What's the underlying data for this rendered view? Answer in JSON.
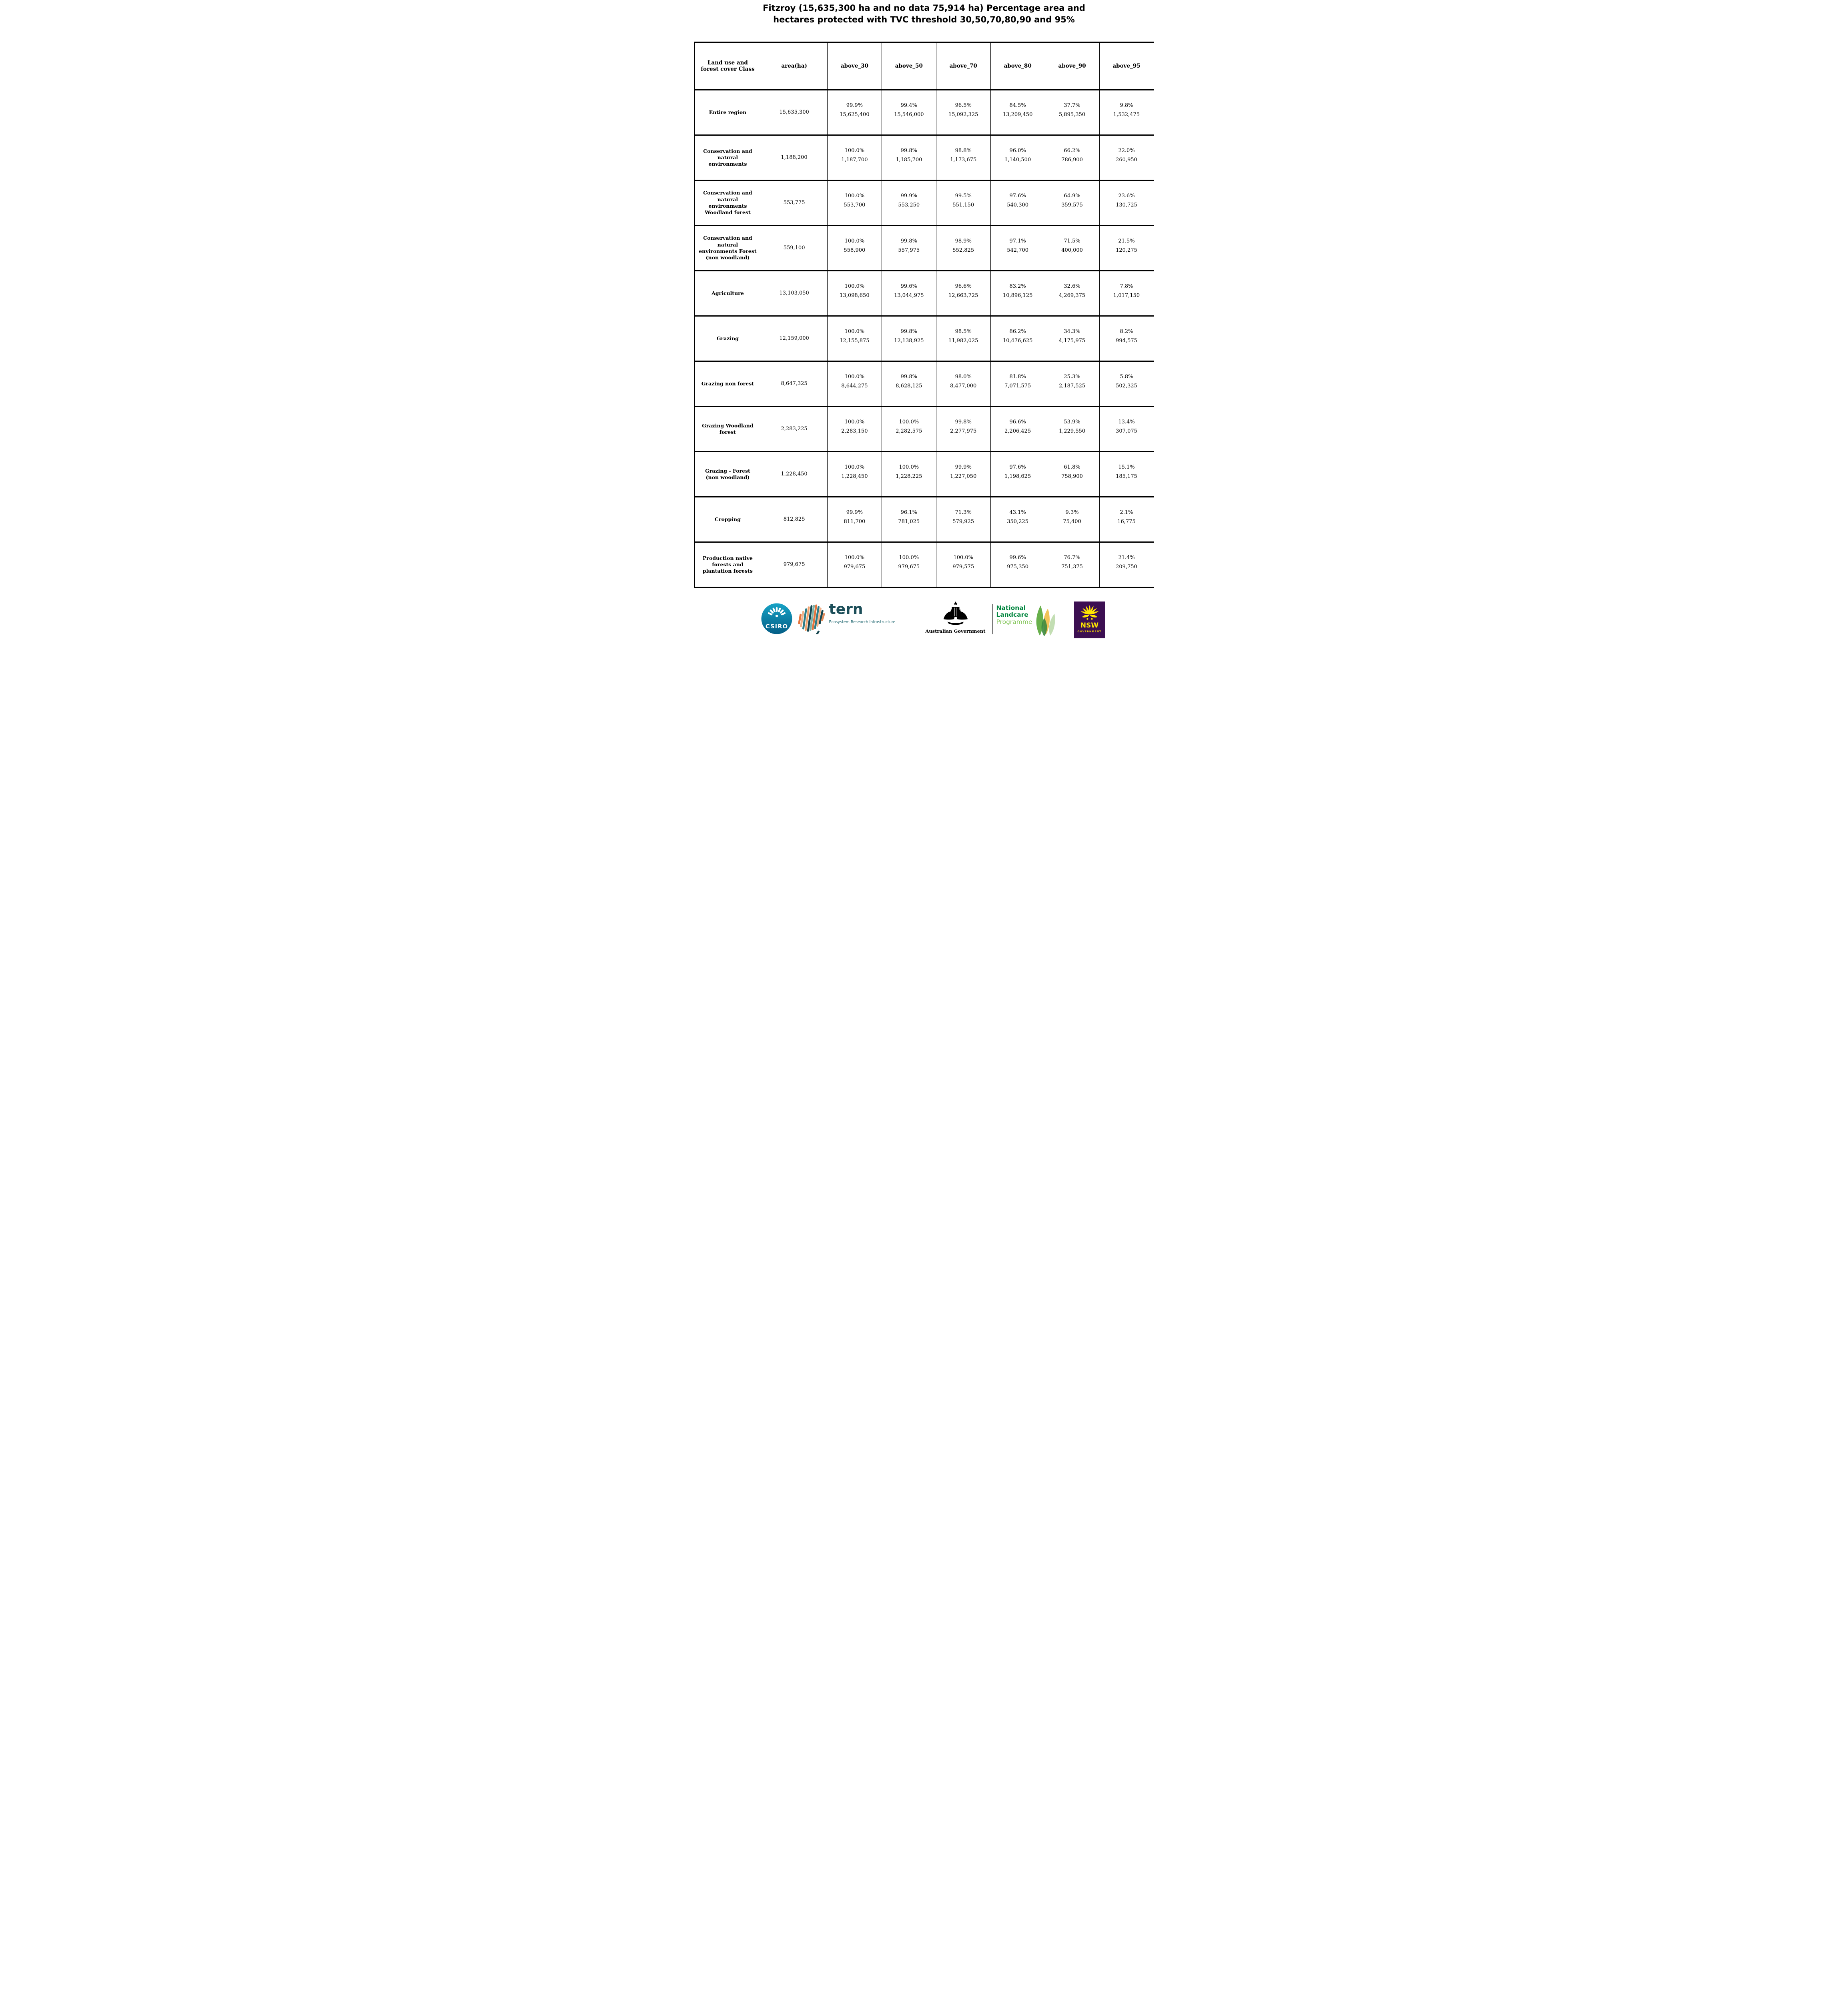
{
  "title": {
    "line1": "Fitzroy (15,635,300 ha and no data 75,914 ha) Percentage area and",
    "line2": "hectares protected with TVC threshold 30,50,70,80,90 and 95%"
  },
  "chart_data": {
    "type": "table",
    "title": "Fitzroy (15,635,300 ha and no data 75,914 ha) Percentage area and hectares protected with TVC threshold 30,50,70,80,90 and 95%",
    "region_area_ha": "15,635,300",
    "no_data_ha": "75,914",
    "columns": [
      "Land use and forest cover Class",
      "area(ha)",
      "above_30",
      "above_50",
      "above_70",
      "above_80",
      "above_90",
      "above_95"
    ],
    "rows": [
      {
        "label": "Entire region",
        "area": "15,635,300",
        "cells": [
          [
            "99.9%",
            "15,625,400"
          ],
          [
            "99.4%",
            "15,546,000"
          ],
          [
            "96.5%",
            "15,092,325"
          ],
          [
            "84.5%",
            "13,209,450"
          ],
          [
            "37.7%",
            "5,895,350"
          ],
          [
            "9.8%",
            "1,532,475"
          ]
        ]
      },
      {
        "label": "Conservation and natural environments",
        "area": "1,188,200",
        "cells": [
          [
            "100.0%",
            "1,187,700"
          ],
          [
            "99.8%",
            "1,185,700"
          ],
          [
            "98.8%",
            "1,173,675"
          ],
          [
            "96.0%",
            "1,140,500"
          ],
          [
            "66.2%",
            "786,900"
          ],
          [
            "22.0%",
            "260,950"
          ]
        ]
      },
      {
        "label": "Conservation and natural environments Woodland forest",
        "area": "553,775",
        "cells": [
          [
            "100.0%",
            "553,700"
          ],
          [
            "99.9%",
            "553,250"
          ],
          [
            "99.5%",
            "551,150"
          ],
          [
            "97.6%",
            "540,300"
          ],
          [
            "64.9%",
            "359,575"
          ],
          [
            "23.6%",
            "130,725"
          ]
        ]
      },
      {
        "label": "Conservation and natural environments Forest (non woodland)",
        "area": "559,100",
        "cells": [
          [
            "100.0%",
            "558,900"
          ],
          [
            "99.8%",
            "557,975"
          ],
          [
            "98.9%",
            "552,825"
          ],
          [
            "97.1%",
            "542,700"
          ],
          [
            "71.5%",
            "400,000"
          ],
          [
            "21.5%",
            "120,275"
          ]
        ]
      },
      {
        "label": "Agriculture",
        "area": "13,103,050",
        "cells": [
          [
            "100.0%",
            "13,098,650"
          ],
          [
            "99.6%",
            "13,044,975"
          ],
          [
            "96.6%",
            "12,663,725"
          ],
          [
            "83.2%",
            "10,896,125"
          ],
          [
            "32.6%",
            "4,269,375"
          ],
          [
            "7.8%",
            "1,017,150"
          ]
        ]
      },
      {
        "label": "Grazing",
        "area": "12,159,000",
        "cells": [
          [
            "100.0%",
            "12,155,875"
          ],
          [
            "99.8%",
            "12,138,925"
          ],
          [
            "98.5%",
            "11,982,025"
          ],
          [
            "86.2%",
            "10,476,625"
          ],
          [
            "34.3%",
            "4,175,975"
          ],
          [
            "8.2%",
            "994,575"
          ]
        ]
      },
      {
        "label": "Grazing non forest",
        "area": "8,647,325",
        "cells": [
          [
            "100.0%",
            "8,644,275"
          ],
          [
            "99.8%",
            "8,628,125"
          ],
          [
            "98.0%",
            "8,477,000"
          ],
          [
            "81.8%",
            "7,071,575"
          ],
          [
            "25.3%",
            "2,187,525"
          ],
          [
            "5.8%",
            "502,325"
          ]
        ]
      },
      {
        "label": "Grazing Woodland forest",
        "area": "2,283,225",
        "cells": [
          [
            "100.0%",
            "2,283,150"
          ],
          [
            "100.0%",
            "2,282,575"
          ],
          [
            "99.8%",
            "2,277,975"
          ],
          [
            "96.6%",
            "2,206,425"
          ],
          [
            "53.9%",
            "1,229,550"
          ],
          [
            "13.4%",
            "307,075"
          ]
        ]
      },
      {
        "label": "Grazing - Forest (non woodland)",
        "area": "1,228,450",
        "cells": [
          [
            "100.0%",
            "1,228,450"
          ],
          [
            "100.0%",
            "1,228,225"
          ],
          [
            "99.9%",
            "1,227,050"
          ],
          [
            "97.6%",
            "1,198,625"
          ],
          [
            "61.8%",
            "758,900"
          ],
          [
            "15.1%",
            "185,175"
          ]
        ]
      },
      {
        "label": "Cropping",
        "area": "812,825",
        "cells": [
          [
            "99.9%",
            "811,700"
          ],
          [
            "96.1%",
            "781,025"
          ],
          [
            "71.3%",
            "579,925"
          ],
          [
            "43.1%",
            "350,225"
          ],
          [
            "9.3%",
            "75,400"
          ],
          [
            "2.1%",
            "16,775"
          ]
        ]
      },
      {
        "label": "Production native forests and plantation forests",
        "area": "979,675",
        "cells": [
          [
            "100.0%",
            "979,675"
          ],
          [
            "100.0%",
            "979,675"
          ],
          [
            "100.0%",
            "979,575"
          ],
          [
            "99.6%",
            "975,350"
          ],
          [
            "76.7%",
            "751,375"
          ],
          [
            "21.4%",
            "209,750"
          ]
        ]
      }
    ],
    "layout_hints": {
      "grid": "all-borders",
      "row_separator": "thick",
      "header_row": true
    }
  },
  "footer": {
    "csiro": {
      "label": "CSIRO"
    },
    "tern": {
      "name": "tern",
      "tagline": "Ecosystem Research Infrastructure"
    },
    "ausgov": {
      "label": "Australian Government"
    },
    "landcare": {
      "line1": "National",
      "line2": "Landcare",
      "line3": "Programme"
    },
    "nsw": {
      "name": "NSW",
      "sub": "GOVERNMENT"
    }
  },
  "colors": {
    "csiro-top": "#17a3c6",
    "csiro-bottom": "#045e86",
    "tern-dark": "#1c4e59",
    "tern-teal": "#266b74",
    "landcare-green": "#00853e",
    "landcare-light": "#7cc24f",
    "nsw-purple": "#3c0f52",
    "nsw-yellow": "#ffe600"
  }
}
